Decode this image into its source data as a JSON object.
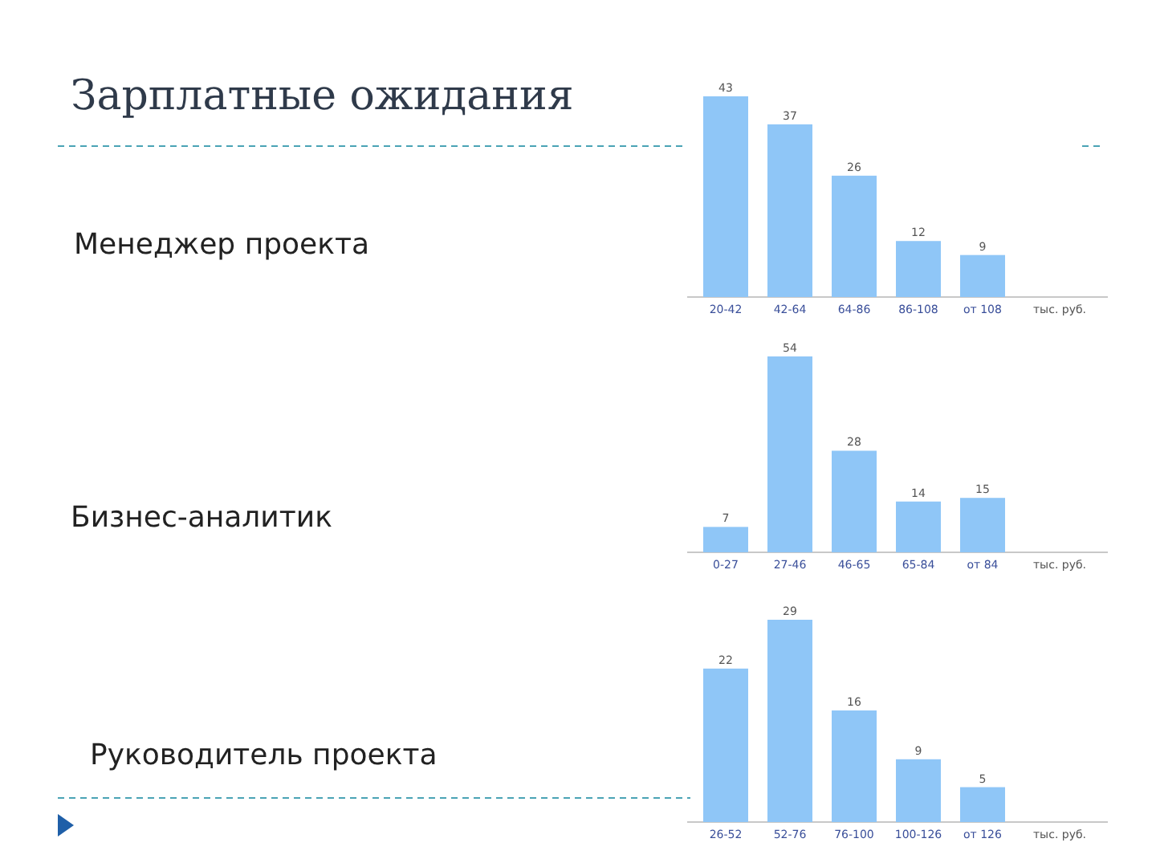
{
  "chart_data": [
    {
      "type": "bar",
      "annotations": [
        "Зарплатные ожидания",
        "Менеджер проекта"
      ],
      "xlabel": "тыс. руб.",
      "categories": [
        "20-42",
        "42-64",
        "64-86",
        "86-108",
        "от 108"
      ],
      "values": [
        43,
        37,
        26,
        12,
        9
      ],
      "color": "#8fc6f7",
      "data_labels": true
    },
    {
      "type": "bar",
      "annotations": [
        "Бизнес-аналитик"
      ],
      "xlabel": "тыс. руб.",
      "categories": [
        "0-27",
        "27-46",
        "46-65",
        "65-84",
        "от 84"
      ],
      "values": [
        7,
        54,
        28,
        14,
        15
      ],
      "color": "#8fc6f7",
      "data_labels": true
    },
    {
      "type": "bar",
      "annotations": [
        "Руководитель проекта"
      ],
      "xlabel": "тыс. руб.",
      "categories": [
        "26-52",
        "52-76",
        "76-100",
        "100-126",
        "от 126"
      ],
      "values": [
        22,
        29,
        16,
        9,
        5
      ],
      "color": "#8fc6f7",
      "data_labels": true
    }
  ]
}
